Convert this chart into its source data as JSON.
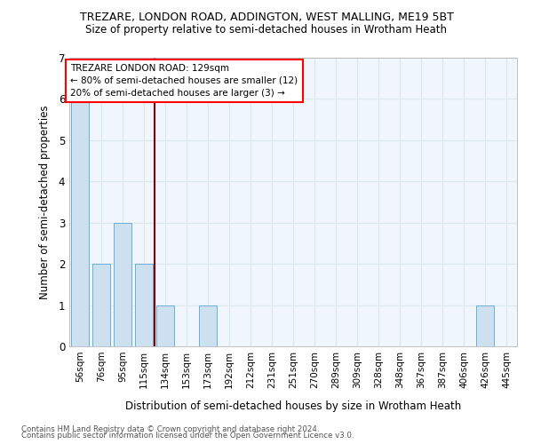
{
  "title": "TREZARE, LONDON ROAD, ADDINGTON, WEST MALLING, ME19 5BT",
  "subtitle": "Size of property relative to semi-detached houses in Wrotham Heath",
  "xlabel": "Distribution of semi-detached houses by size in Wrotham Heath",
  "ylabel": "Number of semi-detached properties",
  "footer1": "Contains HM Land Registry data © Crown copyright and database right 2024.",
  "footer2": "Contains public sector information licensed under the Open Government Licence v3.0.",
  "categories": [
    "56sqm",
    "76sqm",
    "95sqm",
    "115sqm",
    "134sqm",
    "153sqm",
    "173sqm",
    "192sqm",
    "212sqm",
    "231sqm",
    "251sqm",
    "270sqm",
    "289sqm",
    "309sqm",
    "328sqm",
    "348sqm",
    "367sqm",
    "387sqm",
    "406sqm",
    "426sqm",
    "445sqm"
  ],
  "values": [
    6,
    2,
    3,
    2,
    1,
    0,
    1,
    0,
    0,
    0,
    0,
    0,
    0,
    0,
    0,
    0,
    0,
    0,
    0,
    1,
    0
  ],
  "bar_color": "#cce0f0",
  "bar_edge_color": "#6aafd6",
  "ylim": [
    0,
    7
  ],
  "yticks": [
    0,
    1,
    2,
    3,
    4,
    5,
    6,
    7
  ],
  "property_label": "TREZARE LONDON ROAD: 129sqm",
  "annotation_line1": "← 80% of semi-detached houses are smaller (12)",
  "annotation_line2": "20% of semi-detached houses are larger (3) →",
  "vline_x_index": 3.5,
  "grid_color": "#dce8f0"
}
